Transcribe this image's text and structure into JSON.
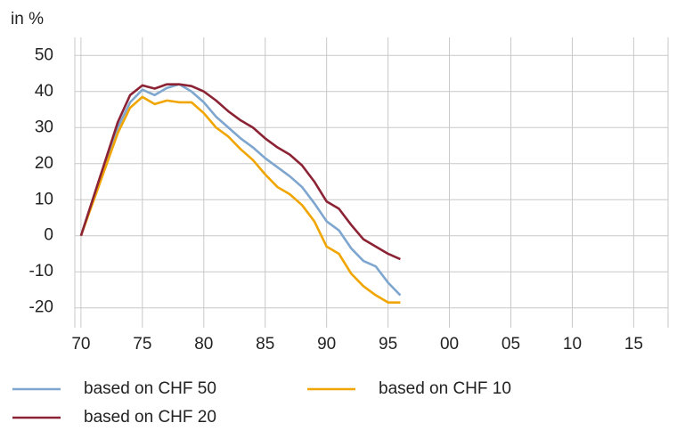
{
  "chart_data": {
    "type": "line",
    "ylabel": "in %",
    "x": [
      1970,
      1971,
      1972,
      1973,
      1974,
      1975,
      1976,
      1977,
      1978,
      1979,
      1980,
      1981,
      1982,
      1983,
      1984,
      1985,
      1986,
      1987,
      1988,
      1989,
      1990,
      1991,
      1992,
      1993,
      1994,
      1995,
      1996
    ],
    "series": [
      {
        "name": "based on CHF 50",
        "color": "#7ea6cf",
        "values": [
          0,
          10,
          20,
          30,
          37,
          40.5,
          39,
          41,
          42,
          40,
          37,
          33,
          30,
          27,
          24.5,
          21.5,
          19,
          16.5,
          13.5,
          9,
          4,
          1.5,
          -3.5,
          -7,
          -8.5,
          -13,
          -16.5
        ]
      },
      {
        "name": "based on CHF 10",
        "color": "#f0a500",
        "values": [
          0,
          9.5,
          19,
          28.5,
          35.5,
          38.5,
          36.5,
          37.5,
          37,
          37,
          34,
          30,
          27.5,
          24,
          21,
          17,
          13.5,
          11.5,
          8.5,
          4,
          -3,
          -5,
          -10.5,
          -14,
          -16.5,
          -18.5,
          -18.5
        ]
      },
      {
        "name": "based on CHF 20",
        "color": "#8b2335",
        "values": [
          0,
          10.5,
          21,
          31.5,
          39,
          41.7,
          40.8,
          42,
          42,
          41.5,
          40,
          37.5,
          34.5,
          32,
          30,
          27,
          24.5,
          22.5,
          19.5,
          15,
          9.5,
          7.5,
          3,
          -1,
          -3,
          -5,
          -6.5
        ]
      }
    ],
    "xlim": [
      1969.5,
      2017.8
    ],
    "xticks": [
      {
        "value": 1970,
        "label": "70"
      },
      {
        "value": 1975,
        "label": "75"
      },
      {
        "value": 1980,
        "label": "80"
      },
      {
        "value": 1985,
        "label": "85"
      },
      {
        "value": 1990,
        "label": "90"
      },
      {
        "value": 1995,
        "label": "95"
      },
      {
        "value": 2000,
        "label": "00"
      },
      {
        "value": 2005,
        "label": "05"
      },
      {
        "value": 2010,
        "label": "10"
      },
      {
        "value": 2015,
        "label": "15"
      }
    ],
    "ylim": [
      -25.5,
      55
    ],
    "yticks": [
      -20,
      -10,
      0,
      10,
      20,
      30,
      40,
      50
    ],
    "grid": true
  }
}
